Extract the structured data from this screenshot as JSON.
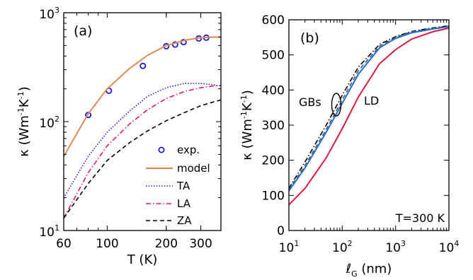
{
  "chart_data": [
    {
      "panel_label": "(a)",
      "type": "line",
      "xscale": "log",
      "yscale": "log",
      "xlim": [
        60,
        380
      ],
      "ylim": [
        10,
        1000
      ],
      "xlabel": "T (K)",
      "ylabel": {
        "base": "κ (Wm",
        "exp1": "-1",
        "mid": "K",
        "exp2": "-1",
        "end": ")"
      },
      "xticks": [
        {
          "value": 60,
          "label": "60"
        },
        {
          "value": 100,
          "label": "100"
        },
        {
          "value": 200,
          "label": "200"
        },
        {
          "value": 300,
          "label": "300"
        }
      ],
      "yticks": [
        {
          "value": 10,
          "base": "10",
          "exp": "1"
        },
        {
          "value": 100,
          "base": "10",
          "exp": "2"
        },
        {
          "value": 1000,
          "base": "10",
          "exp": "3"
        }
      ],
      "legend_position": "bottom-right",
      "series": [
        {
          "name": "exp.",
          "style": "markers",
          "color": "#1a1adb",
          "x": [
            80,
            102,
            152,
            200,
            222,
            245,
            293,
            320
          ],
          "y": [
            115,
            192,
            325,
            493,
            510,
            537,
            580,
            590
          ]
        },
        {
          "name": "model",
          "style": "solid",
          "color": "#e08a55",
          "x": [
            60,
            80,
            100,
            130,
            160,
            200,
            250,
            300,
            350,
            380
          ],
          "y": [
            48,
            118,
            200,
            308,
            405,
            500,
            560,
            590,
            598,
            595
          ]
        },
        {
          "name": "TA",
          "style": "dotted",
          "color": "#1f1fd6",
          "x": [
            60,
            80,
            100,
            130,
            160,
            200,
            250,
            300,
            350,
            380
          ],
          "y": [
            20,
            48,
            80,
            125,
            170,
            205,
            225,
            224,
            218,
            212
          ]
        },
        {
          "name": "LA",
          "style": "dashdot",
          "color": "#d81b60",
          "x": [
            60,
            80,
            100,
            130,
            160,
            200,
            250,
            300,
            350,
            380
          ],
          "y": [
            13,
            34,
            60,
            95,
            128,
            163,
            190,
            205,
            213,
            215
          ]
        },
        {
          "name": "ZA",
          "style": "dashed",
          "color": "#000000",
          "x": [
            60,
            80,
            100,
            130,
            160,
            200,
            250,
            300,
            350,
            380
          ],
          "y": [
            13,
            27,
            44,
            64,
            82,
            102,
            122,
            140,
            152,
            158
          ]
        }
      ],
      "legend_labels": [
        {
          "text": "exp.",
          "color": "#000000"
        },
        {
          "text": "model",
          "color": "#000000"
        },
        {
          "text": "TA",
          "color": "#1f1fd6"
        },
        {
          "text": "LA",
          "color": "#e0202a"
        },
        {
          "text": "ZA",
          "color": "#000000"
        }
      ]
    },
    {
      "panel_label": "(b)",
      "type": "line",
      "xscale": "log",
      "yscale": "linear",
      "xlim": [
        10,
        10000
      ],
      "ylim": [
        0,
        600
      ],
      "xlabel": {
        "base": "ℓ",
        "sub": "G",
        "end": " (nm)"
      },
      "ylabel": {
        "base": "κ (Wm",
        "exp1": "-1",
        "mid": "K",
        "exp2": "-1",
        "end": ")"
      },
      "xticks": [
        {
          "value": 10,
          "base": "10",
          "exp": "1"
        },
        {
          "value": 100,
          "base": "10",
          "exp": "2"
        },
        {
          "value": 1000,
          "base": "10",
          "exp": "3"
        },
        {
          "value": 10000,
          "base": "10",
          "exp": "4"
        }
      ],
      "yticks": [
        0,
        100,
        200,
        300,
        400,
        500,
        600
      ],
      "annotations": {
        "gbs": "GBs",
        "ld": "LD",
        "temp": "T=300 K"
      },
      "series": [
        {
          "name": "",
          "style": "dashdot",
          "color": "#000000",
          "x": [
            10,
            20,
            50,
            100,
            200,
            500,
            1000,
            2000,
            5000,
            10000
          ],
          "y": [
            120,
            195,
            300,
            385,
            465,
            530,
            552,
            567,
            577,
            583
          ]
        },
        {
          "name": "",
          "style": "dashed",
          "color": "#555555",
          "x": [
            10,
            20,
            50,
            100,
            200,
            500,
            1000,
            2000,
            5000,
            10000
          ],
          "y": [
            116,
            185,
            288,
            372,
            455,
            525,
            550,
            566,
            576,
            582
          ]
        },
        {
          "name": "",
          "style": "solid",
          "color": "#1c6fd6",
          "x": [
            10,
            20,
            50,
            100,
            200,
            500,
            1000,
            2000,
            5000,
            10000
          ],
          "y": [
            113,
            178,
            280,
            362,
            445,
            520,
            547,
            563,
            574,
            580
          ]
        },
        {
          "name": "LD",
          "style": "solid",
          "color": "#d81b43",
          "x": [
            10,
            20,
            50,
            100,
            200,
            500,
            1000,
            2000,
            5000,
            10000
          ],
          "y": [
            73,
            120,
            207,
            290,
            380,
            475,
            515,
            545,
            566,
            576
          ]
        }
      ]
    }
  ]
}
